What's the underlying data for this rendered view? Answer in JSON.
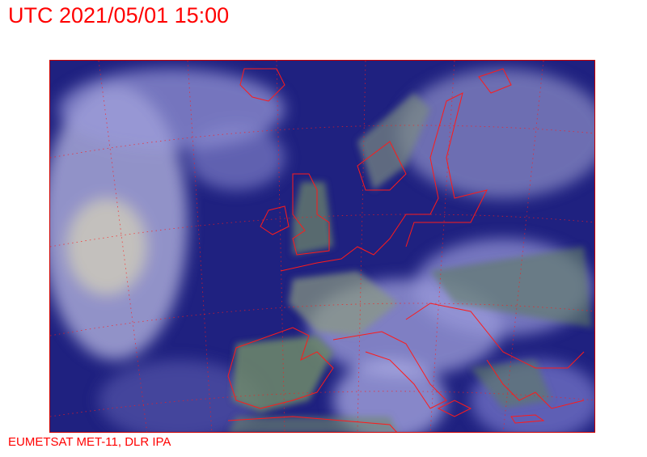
{
  "header": {
    "title": "UTC 2021/05/01 15:00"
  },
  "footer": {
    "credit": "EUMETSAT MET-11, DLR IPA"
  },
  "image": {
    "type": "satellite-composite",
    "region": "Europe and North Atlantic",
    "colors": {
      "ocean": "#1d1f78",
      "cloud": "#c8c8e8",
      "land": "#6f8a6a",
      "borders": "#ff0000"
    }
  }
}
